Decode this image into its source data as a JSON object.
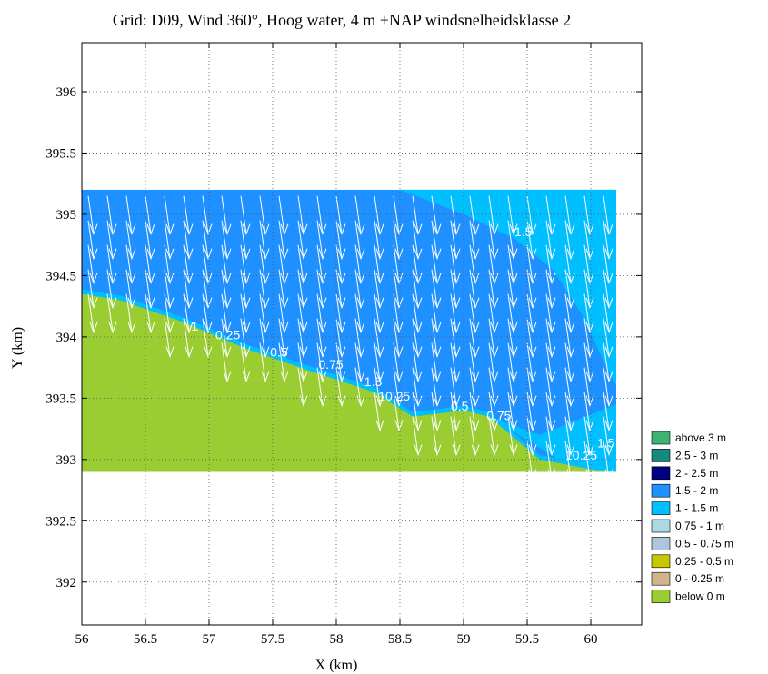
{
  "chart_data": {
    "type": "heatmap",
    "title": "Grid: D09, Wind 360°, Hoog water, 4 m +NAP windsnelheidsklasse 2",
    "xlabel": "X (km)",
    "ylabel": "Y (km)",
    "xlim": [
      56,
      60.4
    ],
    "ylim": [
      391.65,
      396.4
    ],
    "x_ticks": [
      "56",
      "56.5",
      "57",
      "57.5",
      "58",
      "58.5",
      "59",
      "59.5",
      "60"
    ],
    "y_ticks": [
      "392",
      "392.5",
      "393",
      "393.5",
      "394",
      "394.5",
      "395",
      "395.5",
      "396"
    ],
    "grid": true,
    "domain": {
      "x": [
        56,
        60.2
      ],
      "y": [
        392.9,
        395.2
      ]
    },
    "shoreline": [
      [
        56,
        394.35
      ],
      [
        56.3,
        394.3
      ],
      [
        56.8,
        394.12
      ],
      [
        57.3,
        393.9
      ],
      [
        57.8,
        393.72
      ],
      [
        58.3,
        393.55
      ],
      [
        58.6,
        393.35
      ],
      [
        59.0,
        393.4
      ],
      [
        59.2,
        393.35
      ],
      [
        59.6,
        393.0
      ],
      [
        60.0,
        392.92
      ]
    ],
    "band_boundary_1_5": [
      [
        58.5,
        395.2
      ],
      [
        59.0,
        395.0
      ],
      [
        59.4,
        394.8
      ],
      [
        59.7,
        394.55
      ],
      [
        59.95,
        394.15
      ],
      [
        60.1,
        393.8
      ],
      [
        60.2,
        393.6
      ]
    ],
    "contour_labels": [
      {
        "text": "1",
        "x": 56.86,
        "y": 394.05
      },
      {
        "text": "0.25",
        "x": 57.05,
        "y": 393.98
      },
      {
        "text": "0.5",
        "x": 57.48,
        "y": 393.84
      },
      {
        "text": "0.75",
        "x": 57.86,
        "y": 393.74
      },
      {
        "text": "1.5",
        "x": 58.22,
        "y": 393.6
      },
      {
        "text": "10.25",
        "x": 58.33,
        "y": 393.48
      },
      {
        "text": "0.5",
        "x": 58.9,
        "y": 393.4
      },
      {
        "text": "0.75",
        "x": 59.18,
        "y": 393.32
      },
      {
        "text": "1.5",
        "x": 59.4,
        "y": 394.82
      },
      {
        "text": "10.25",
        "x": 59.8,
        "y": 393.0
      },
      {
        "text": "1.5",
        "x": 60.05,
        "y": 393.1
      }
    ],
    "wind_arrows": {
      "direction": "360°",
      "color": "#ffffff"
    },
    "legend": {
      "placement": "bottom-right",
      "entries": [
        {
          "label": "above 3 m",
          "color": "#3cb371"
        },
        {
          "label": "2.5 - 3 m",
          "color": "#138a7d"
        },
        {
          "label": "2 - 2.5 m",
          "color": "#000080"
        },
        {
          "label": "1.5 - 2 m",
          "color": "#1e90ff"
        },
        {
          "label": "1 - 1.5 m",
          "color": "#00bfff"
        },
        {
          "label": "0.75 - 1 m",
          "color": "#add8e6"
        },
        {
          "label": "0.5 - 0.75 m",
          "color": "#b0c4de"
        },
        {
          "label": "0.25 - 0.5 m",
          "color": "#c8c800"
        },
        {
          "label": "0 - 0.25 m",
          "color": "#d2b48c"
        },
        {
          "label": "below 0 m",
          "color": "#9acd32"
        }
      ]
    }
  }
}
